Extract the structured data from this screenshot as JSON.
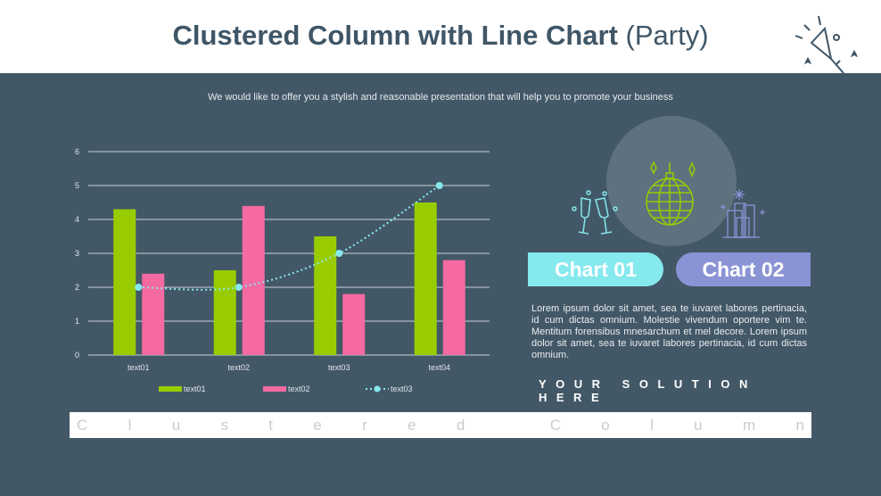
{
  "header": {
    "title": "Clustered Column with Line Chart",
    "title_suffix": "(Party)"
  },
  "subtitle": "We would like to offer you a stylish and reasonable presentation that will help you to promote your business",
  "chart_data": {
    "type": "bar",
    "categories": [
      "text01",
      "text02",
      "text03",
      "text04"
    ],
    "series": [
      {
        "name": "text01",
        "kind": "bar",
        "color": "#99cc00",
        "values": [
          4.3,
          2.5,
          3.5,
          4.5
        ]
      },
      {
        "name": "text02",
        "kind": "bar",
        "color": "#f46aa1",
        "values": [
          2.4,
          4.4,
          1.8,
          2.8
        ]
      },
      {
        "name": "text03",
        "kind": "line",
        "style": "dotted-smooth",
        "color": "#86e9ee",
        "values": [
          2,
          2,
          3,
          5
        ]
      }
    ],
    "ylim": [
      0,
      6
    ],
    "yticks": [
      0,
      1,
      2,
      3,
      4,
      5,
      6
    ],
    "grid": true,
    "legend": "bottom"
  },
  "panel": {
    "chart1_label": "Chart 01",
    "chart1_color": "#86e9ee",
    "chart2_label": "Chart 02",
    "chart2_color": "#8a93d4",
    "icons": [
      "champagne-glasses-icon",
      "disco-ball-icon",
      "city-fireworks-icon"
    ],
    "body": "Lorem ipsum dolor sit amet, sea te iuvaret labores pertinacia, id cum dictas omnium. Molestie vivendum oportere vim te. Mentitum forensibus mnesarchum et mel decore. Lorem ipsum dolor sit amet, sea te iuvaret labores pertinacia, id cum dictas omnium.",
    "solution": "YOUR SOLUTION HERE"
  },
  "banner": "Clustered Column"
}
